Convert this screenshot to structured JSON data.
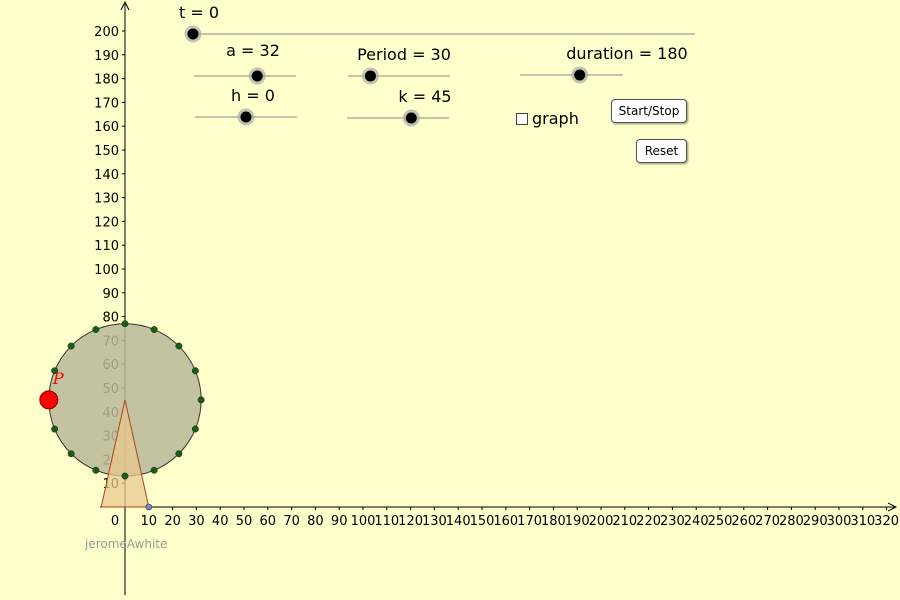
{
  "sliders": [
    {
      "id": "t",
      "label": "t = 0",
      "value": 0
    },
    {
      "id": "a",
      "label": "a = 32",
      "value": 32
    },
    {
      "id": "h",
      "label": "h = 0",
      "value": 0
    },
    {
      "id": "period",
      "label": "Period = 30",
      "value": 30
    },
    {
      "id": "k",
      "label": "k = 45",
      "value": 45
    },
    {
      "id": "duration",
      "label": "duration = 180",
      "value": 180
    }
  ],
  "checkbox": {
    "label": "graph",
    "checked": false
  },
  "buttons": {
    "start_stop": "Start/Stop",
    "reset": "Reset"
  },
  "point_label": "P",
  "credit": "jeromeAwhite",
  "axes": {
    "y_ticks": [
      10,
      20,
      30,
      40,
      50,
      60,
      70,
      80,
      90,
      100,
      110,
      120,
      130,
      140,
      150,
      160,
      170,
      180,
      190,
      200
    ],
    "x_ticks": [
      0,
      10,
      20,
      30,
      40,
      50,
      60,
      70,
      80,
      90,
      100,
      110,
      120,
      130,
      140,
      150,
      160,
      170,
      180,
      190,
      200,
      210,
      220,
      230,
      240,
      250,
      260,
      270,
      280,
      290,
      300,
      310,
      320
    ]
  },
  "colors": {
    "background": "#ffffcc",
    "wheel_fill": "#b9b999",
    "wheel_dot": "#1a5c1a",
    "point_p": "#ff0000",
    "support_fill": "#e8c890",
    "support_stroke": "#b04020"
  }
}
